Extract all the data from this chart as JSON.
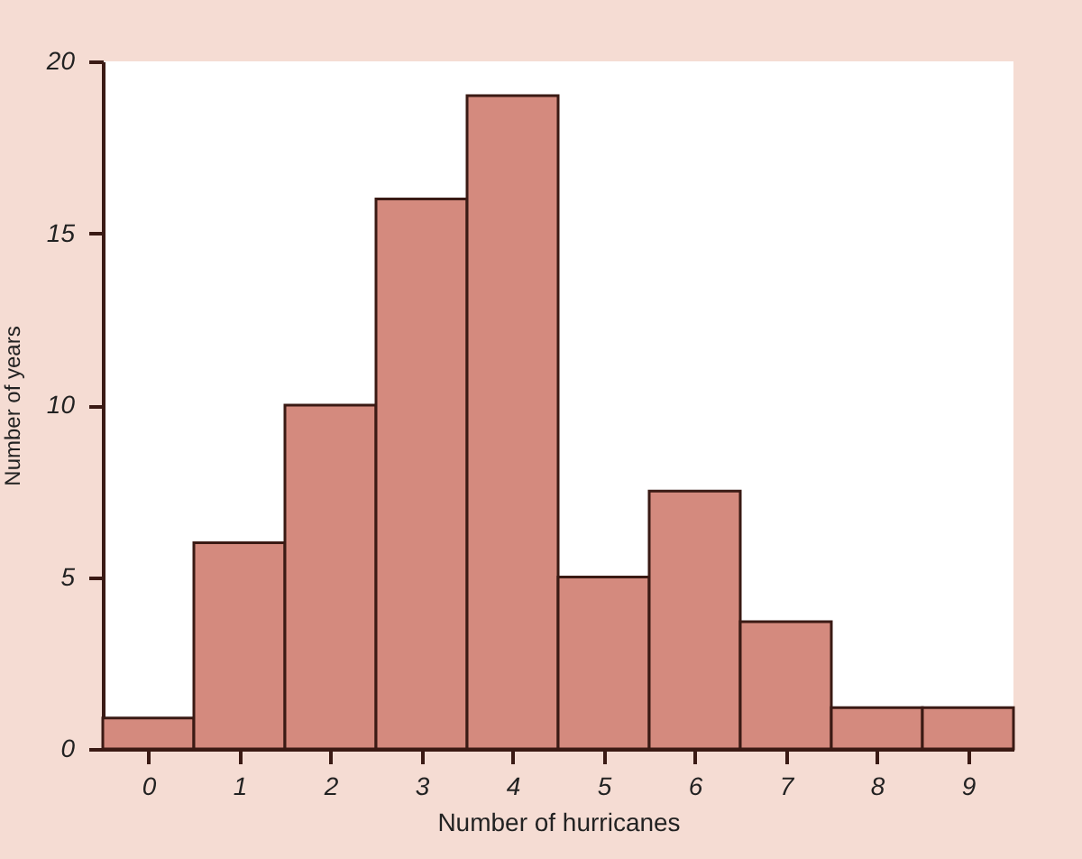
{
  "chart_data": {
    "type": "histogram",
    "xlabel": "Number of hurricanes",
    "ylabel": "Number of years",
    "bins": [
      -0.5,
      0.5,
      1.5,
      2.5,
      3.5,
      4.5,
      5.5,
      6.5,
      7.5,
      8.5,
      9.5
    ],
    "values": [
      0.9,
      6,
      10,
      16,
      19,
      5,
      7.5,
      3.7,
      1.2,
      1.2
    ],
    "color": "#d48a7e",
    "xlim": [
      -0.5,
      9.5
    ],
    "xticks": [
      0,
      1,
      2,
      3,
      4,
      5,
      6,
      7,
      8,
      9
    ],
    "ylim": [
      0,
      20
    ],
    "yticks": [
      0,
      5,
      10,
      15,
      20
    ],
    "grid": false
  }
}
